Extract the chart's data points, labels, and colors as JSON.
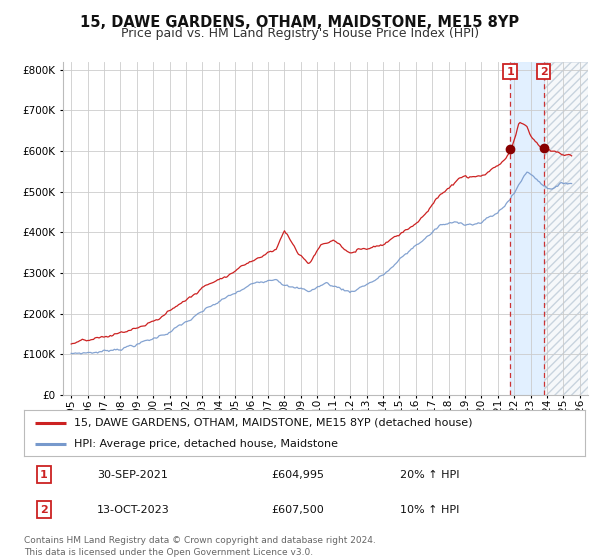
{
  "title": "15, DAWE GARDENS, OTHAM, MAIDSTONE, ME15 8YP",
  "subtitle": "Price paid vs. HM Land Registry's House Price Index (HPI)",
  "legend_label_red": "15, DAWE GARDENS, OTHAM, MAIDSTONE, ME15 8YP (detached house)",
  "legend_label_blue": "HPI: Average price, detached house, Maidstone",
  "footnote1": "Contains HM Land Registry data © Crown copyright and database right 2024.",
  "footnote2": "This data is licensed under the Open Government Licence v3.0.",
  "marker1_date": "30-SEP-2021",
  "marker1_price": "£604,995",
  "marker1_hpi": "20% ↑ HPI",
  "marker2_date": "13-OCT-2023",
  "marker2_price": "£607,500",
  "marker2_hpi": "10% ↑ HPI",
  "marker1_x": 2021.75,
  "marker2_x": 2023.79,
  "marker1_y_red": 604995,
  "marker2_y_red": 607500,
  "ylim_max": 820000,
  "ylim_min": 0,
  "xlim_min": 1994.5,
  "xlim_max": 2026.5,
  "bg_color": "#ffffff",
  "plot_bg_color": "#ffffff",
  "grid_color": "#cccccc",
  "red_color": "#cc2222",
  "blue_color": "#7799cc",
  "shade_color": "#ddeeff",
  "vline_color": "#cc3333",
  "marker_face_color": "#880000",
  "box_edge_color": "#cc2222",
  "title_fontsize": 10.5,
  "subtitle_fontsize": 9,
  "tick_fontsize": 7.5,
  "legend_fontsize": 8,
  "footnote_fontsize": 6.5
}
